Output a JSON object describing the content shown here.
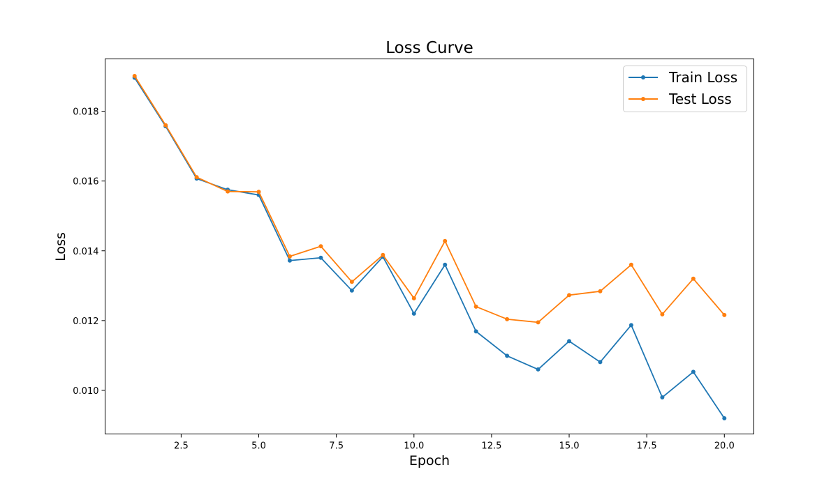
{
  "chart_data": {
    "type": "line",
    "title": "Loss Curve",
    "xlabel": "Epoch",
    "ylabel": "Loss",
    "xlim": [
      0.05,
      20.95
    ],
    "ylim": [
      0.00875,
      0.0195
    ],
    "xticks": [
      2.5,
      5.0,
      7.5,
      10.0,
      12.5,
      15.0,
      17.5,
      20.0
    ],
    "xtick_labels": [
      "2.5",
      "5.0",
      "7.5",
      "10.0",
      "12.5",
      "15.0",
      "17.5",
      "20.0"
    ],
    "yticks": [
      0.01,
      0.012,
      0.014,
      0.016,
      0.018
    ],
    "ytick_labels": [
      "0.010",
      "0.012",
      "0.014",
      "0.016",
      "0.018"
    ],
    "grid": false,
    "legend": "top-right",
    "x": [
      1,
      2,
      3,
      4,
      5,
      6,
      7,
      8,
      9,
      10,
      11,
      12,
      13,
      14,
      15,
      16,
      17,
      18,
      19,
      20
    ],
    "series": [
      {
        "name": "Train Loss",
        "color": "#1f77b4",
        "values": [
          0.01896,
          0.01757,
          0.01607,
          0.01575,
          0.0156,
          0.01372,
          0.0138,
          0.01286,
          0.01383,
          0.0122,
          0.0136,
          0.01169,
          0.01099,
          0.0106,
          0.01141,
          0.01081,
          0.01187,
          0.0098,
          0.01053,
          0.0092
        ]
      },
      {
        "name": "Test Loss",
        "color": "#ff7f0e",
        "values": [
          0.01901,
          0.0176,
          0.01611,
          0.0157,
          0.01569,
          0.01384,
          0.01413,
          0.01311,
          0.01388,
          0.01264,
          0.01428,
          0.0124,
          0.01204,
          0.01195,
          0.01273,
          0.01284,
          0.0136,
          0.01218,
          0.0132,
          0.01216
        ]
      }
    ]
  }
}
